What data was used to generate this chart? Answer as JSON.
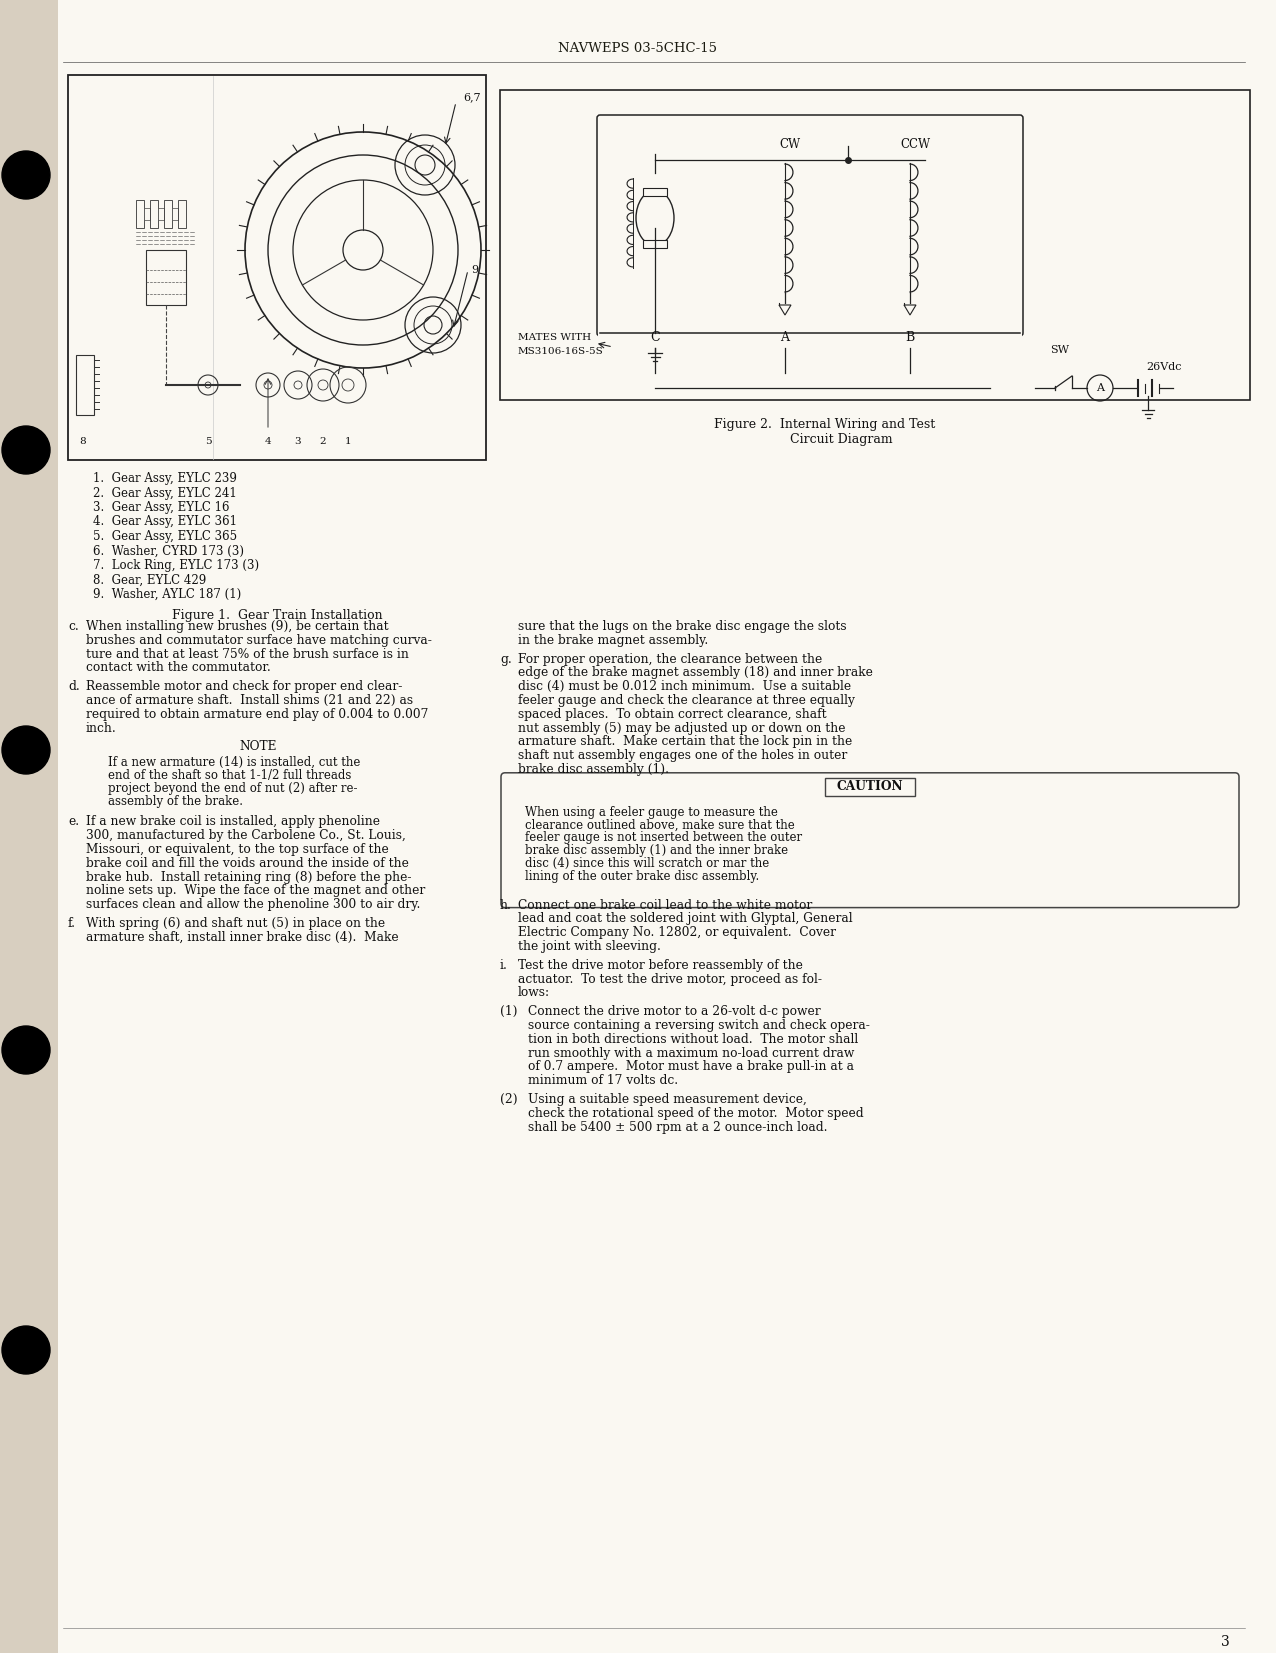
{
  "page_bg": "#faf8f2",
  "left_margin_bg": "#d8cfc0",
  "header_text": "NAVWEPS 03-5CHC-15",
  "page_number": "3",
  "figure1_title": "Figure 1.  Gear Train Installation",
  "figure2_title": "Figure 2.  Internal Wiring and Test\n        Circuit Diagram",
  "parts_list": [
    "1.  Gear Assy, EYLC 239",
    "2.  Gear Assy, EYLC 241",
    "3.  Gear Assy, EYLC 16",
    "4.  Gear Assy, EYLC 361",
    "5.  Gear Assy, EYLC 365",
    "6.  Washer, CYRD 173 (3)",
    "7.  Lock Ring, EYLC 173 (3)",
    "8.  Gear, EYLC 429",
    "9.  Washer, AYLC 187 (1)"
  ],
  "left_paragraphs": [
    {
      "label": "c.",
      "indent": 18,
      "lines": [
        "When installing new brushes (9), be certain that",
        "brushes and commutator surface have matching curva-",
        "ture and that at least 75% of the brush surface is in",
        "contact with the commutator."
      ]
    },
    {
      "label": "d.",
      "indent": 18,
      "lines": [
        "Reassemble motor and check for proper end clear-",
        "ance of armature shaft.  Install shims (21 and 22) as",
        "required to obtain armature end play of 0.004 to 0.007",
        "inch."
      ]
    },
    {
      "label": "NOTE",
      "indent": 30,
      "lines": [
        "If a new armature (14) is installed, cut the",
        "end of the shaft so that 1-1/2 full threads",
        "project beyond the end of nut (2) after re-",
        "assembly of the brake."
      ]
    },
    {
      "label": "e.",
      "indent": 18,
      "lines": [
        "If a new brake coil is installed, apply phenoline",
        "300, manufactured by the Carbolene Co., St. Louis,",
        "Missouri, or equivalent, to the top surface of the",
        "brake coil and fill the voids around the inside of the",
        "brake hub.  Install retaining ring (8) before the phe-",
        "noline sets up.  Wipe the face of the magnet and other",
        "surfaces clean and allow the phenoline 300 to air dry."
      ]
    },
    {
      "label": "f.",
      "indent": 18,
      "lines": [
        "With spring (6) and shaft nut (5) in place on the",
        "armature shaft, install inner brake disc (4).  Make"
      ]
    }
  ],
  "right_paragraphs": [
    {
      "label": "",
      "indent": 18,
      "lines": [
        "sure that the lugs on the brake disc engage the slots",
        "in the brake magnet assembly."
      ]
    },
    {
      "label": "g.",
      "indent": 18,
      "lines": [
        "For proper operation, the clearance between the",
        "edge of the brake magnet assembly (18) and inner brake",
        "disc (4) must be 0.012 inch minimum.  Use a suitable",
        "feeler gauge and check the clearance at three equally",
        "spaced places.  To obtain correct clearance, shaft",
        "nut assembly (5) may be adjusted up or down on the",
        "armature shaft.  Make certain that the lock pin in the",
        "shaft nut assembly engages one of the holes in outer",
        "brake disc assembly (1)."
      ]
    },
    {
      "label": "CAUTION",
      "indent": 20,
      "lines": [
        "When using a feeler gauge to measure the",
        "clearance outlined above, make sure that the",
        "feeler gauge is not inserted between the outer",
        "brake disc assembly (1) and the inner brake",
        "disc (4) since this will scratch or mar the",
        "lining of the outer brake disc assembly."
      ]
    },
    {
      "label": "h.",
      "indent": 18,
      "lines": [
        "Connect one brake coil lead to the white motor",
        "lead and coat the soldered joint with Glyptal, General",
        "Electric Company No. 12802, or equivalent.  Cover",
        "the joint with sleeving."
      ]
    },
    {
      "label": "i.",
      "indent": 18,
      "lines": [
        "Test the drive motor before reassembly of the",
        "actuator.  To test the drive motor, proceed as fol-",
        "lows:"
      ]
    },
    {
      "label": "(1)",
      "indent": 28,
      "lines": [
        "Connect the drive motor to a 26-volt d-c power",
        "source containing a reversing switch and check opera-",
        "tion in both directions without load.  The motor shall",
        "run smoothly with a maximum no-load current draw",
        "of 0.7 ampere.  Motor must have a brake pull-in at a",
        "minimum of 17 volts dc."
      ]
    },
    {
      "label": "(2)",
      "indent": 28,
      "lines": [
        "Using a suitable speed measurement device,",
        "check the rotational speed of the motor.  Motor speed",
        "shall be 5400 ± 500 rpm at a 2 ounce-inch load."
      ]
    }
  ]
}
